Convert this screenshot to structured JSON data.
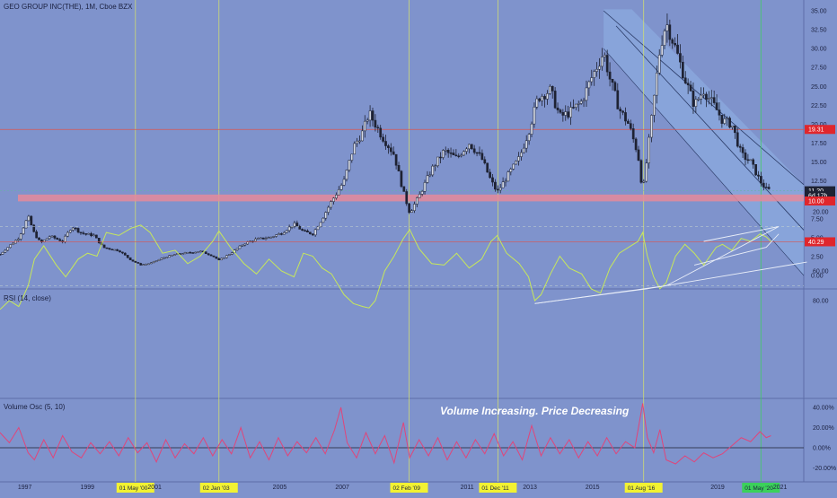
{
  "header": {
    "title": "GEO GROUP INC(THE), 1M, Cboe BZX"
  },
  "colors": {
    "background": "#7f93cc",
    "panel_border": "#5c6ea8",
    "candle": "#1e2233",
    "vline": "#d6e26a",
    "hline_red": "#d9544f",
    "zone_red": "#e58a9a",
    "channel_fill": "#8fb2e6",
    "rsi_line": "#c7e85a",
    "rsi_band": "#a9c8c4",
    "vol_line": "#e0457a",
    "trend_white": "#e9eef8",
    "label_red": "#e0262c",
    "label_dark": "#1e2233",
    "date_yellow": "#f2f232",
    "date_green": "#3bd15a"
  },
  "chart_data": [
    {
      "type": "candlestick",
      "name": "price",
      "y_ticks": [
        "35.00",
        "32.50",
        "30.00",
        "27.50",
        "25.00",
        "22.50",
        "20.00",
        "17.50",
        "15.00",
        "12.50",
        "10.00",
        "7.50",
        "5.00",
        "2.50",
        "0.00"
      ],
      "ylim": [
        0,
        35
      ],
      "markers": [
        {
          "label": "19.31",
          "value": 19.31,
          "style": "red"
        },
        {
          "label": "11.20",
          "value": 11.2,
          "style": "dark"
        },
        {
          "label": "6d 17h",
          "value": 10.55,
          "style": "dark"
        },
        {
          "label": "10.00",
          "value": 9.85,
          "style": "red"
        }
      ],
      "zone": [
        9.8,
        10.7
      ],
      "closes": [
        [
          1996.0,
          2.8
        ],
        [
          1996.6,
          5.0
        ],
        [
          1996.9,
          7.8
        ],
        [
          1997.1,
          5.5
        ],
        [
          1997.3,
          4.3
        ],
        [
          1997.6,
          5.2
        ],
        [
          1998.0,
          4.5
        ],
        [
          1998.3,
          6.5
        ],
        [
          1998.6,
          5.6
        ],
        [
          1999.0,
          5.3
        ],
        [
          1999.3,
          3.7
        ],
        [
          1999.8,
          3.3
        ],
        [
          2000.2,
          2.0
        ],
        [
          2000.5,
          1.4
        ],
        [
          2000.8,
          1.6
        ],
        [
          2001.2,
          2.3
        ],
        [
          2001.6,
          2.8
        ],
        [
          2002.0,
          3.0
        ],
        [
          2002.4,
          3.2
        ],
        [
          2002.8,
          2.6
        ],
        [
          2003.0,
          2.0
        ],
        [
          2003.4,
          3.0
        ],
        [
          2003.8,
          4.2
        ],
        [
          2004.2,
          4.8
        ],
        [
          2004.6,
          5.0
        ],
        [
          2005.0,
          5.6
        ],
        [
          2005.4,
          6.8
        ],
        [
          2005.7,
          5.8
        ],
        [
          2006.0,
          5.5
        ],
        [
          2006.3,
          7.5
        ],
        [
          2006.6,
          9.8
        ],
        [
          2007.0,
          12.5
        ],
        [
          2007.3,
          17.0
        ],
        [
          2007.6,
          19.0
        ],
        [
          2007.8,
          21.5
        ],
        [
          2008.2,
          18.5
        ],
        [
          2008.6,
          16.0
        ],
        [
          2008.9,
          11.0
        ],
        [
          2009.1,
          8.3
        ],
        [
          2009.4,
          10.5
        ],
        [
          2009.8,
          14.0
        ],
        [
          2010.2,
          16.5
        ],
        [
          2010.6,
          15.5
        ],
        [
          2011.0,
          17.5
        ],
        [
          2011.4,
          15.5
        ],
        [
          2011.7,
          12.5
        ],
        [
          2011.9,
          11.0
        ],
        [
          2012.2,
          13.0
        ],
        [
          2012.6,
          15.5
        ],
        [
          2012.9,
          19.0
        ],
        [
          2013.2,
          23.5
        ],
        [
          2013.6,
          24.5
        ],
        [
          2013.9,
          21.0
        ],
        [
          2014.2,
          21.5
        ],
        [
          2014.6,
          23.0
        ],
        [
          2014.9,
          26.0
        ],
        [
          2015.3,
          29.5
        ],
        [
          2015.5,
          26.0
        ],
        [
          2015.8,
          22.0
        ],
        [
          2016.1,
          20.0
        ],
        [
          2016.4,
          16.0
        ],
        [
          2016.55,
          11.0
        ],
        [
          2016.7,
          16.0
        ],
        [
          2016.9,
          23.0
        ],
        [
          2017.1,
          30.0
        ],
        [
          2017.3,
          33.5
        ],
        [
          2017.6,
          30.0
        ],
        [
          2017.9,
          26.0
        ],
        [
          2018.2,
          22.5
        ],
        [
          2018.5,
          24.5
        ],
        [
          2018.9,
          22.0
        ],
        [
          2019.1,
          20.5
        ],
        [
          2019.4,
          20.0
        ],
        [
          2019.7,
          16.0
        ],
        [
          2020.0,
          15.0
        ],
        [
          2020.3,
          12.5
        ],
        [
          2020.5,
          11.4
        ],
        [
          2020.65,
          11.2
        ]
      ]
    },
    {
      "type": "line",
      "name": "rsi",
      "label": "RSI (14, close)",
      "y_ticks": [
        "80.00",
        "60.00",
        "40.00",
        "20.00"
      ],
      "ylim": [
        15,
        90
      ],
      "band": [
        30,
        70
      ],
      "marker": {
        "label": "40.29",
        "value": 40.29
      },
      "points": [
        [
          1996.0,
          86
        ],
        [
          1996.3,
          80
        ],
        [
          1996.6,
          84
        ],
        [
          1996.9,
          70
        ],
        [
          1997.1,
          52
        ],
        [
          1997.4,
          43
        ],
        [
          1997.8,
          56
        ],
        [
          1998.1,
          64
        ],
        [
          1998.5,
          52
        ],
        [
          1998.8,
          48
        ],
        [
          1999.1,
          50
        ],
        [
          1999.4,
          34
        ],
        [
          1999.8,
          36
        ],
        [
          2000.2,
          31
        ],
        [
          2000.5,
          29
        ],
        [
          2000.8,
          34
        ],
        [
          2001.2,
          48
        ],
        [
          2001.6,
          46
        ],
        [
          2002.0,
          55
        ],
        [
          2002.4,
          50
        ],
        [
          2002.8,
          40
        ],
        [
          2003.0,
          33
        ],
        [
          2003.4,
          45
        ],
        [
          2003.8,
          55
        ],
        [
          2004.2,
          62
        ],
        [
          2004.6,
          52
        ],
        [
          2005.0,
          60
        ],
        [
          2005.4,
          64
        ],
        [
          2005.7,
          48
        ],
        [
          2006.0,
          50
        ],
        [
          2006.3,
          58
        ],
        [
          2006.6,
          62
        ],
        [
          2007.0,
          76
        ],
        [
          2007.3,
          82
        ],
        [
          2007.6,
          84
        ],
        [
          2007.8,
          85
        ],
        [
          2008.0,
          80
        ],
        [
          2008.3,
          60
        ],
        [
          2008.6,
          50
        ],
        [
          2008.9,
          38
        ],
        [
          2009.1,
          32
        ],
        [
          2009.4,
          45
        ],
        [
          2009.8,
          55
        ],
        [
          2010.2,
          56
        ],
        [
          2010.6,
          48
        ],
        [
          2011.0,
          58
        ],
        [
          2011.4,
          52
        ],
        [
          2011.7,
          40
        ],
        [
          2011.9,
          36
        ],
        [
          2012.2,
          48
        ],
        [
          2012.6,
          55
        ],
        [
          2012.9,
          64
        ],
        [
          2013.1,
          80
        ],
        [
          2013.3,
          76
        ],
        [
          2013.6,
          62
        ],
        [
          2013.9,
          50
        ],
        [
          2014.2,
          58
        ],
        [
          2014.6,
          62
        ],
        [
          2014.9,
          72
        ],
        [
          2015.2,
          75
        ],
        [
          2015.5,
          58
        ],
        [
          2015.8,
          48
        ],
        [
          2016.1,
          44
        ],
        [
          2016.4,
          40
        ],
        [
          2016.55,
          34
        ],
        [
          2016.7,
          50
        ],
        [
          2016.9,
          64
        ],
        [
          2017.1,
          72
        ],
        [
          2017.3,
          68
        ],
        [
          2017.6,
          50
        ],
        [
          2017.9,
          42
        ],
        [
          2018.2,
          48
        ],
        [
          2018.5,
          56
        ],
        [
          2018.9,
          44
        ],
        [
          2019.1,
          42
        ],
        [
          2019.4,
          46
        ],
        [
          2019.7,
          38
        ],
        [
          2020.0,
          40
        ],
        [
          2020.3,
          35
        ],
        [
          2020.5,
          37
        ],
        [
          2020.65,
          40
        ]
      ],
      "trendlines": [
        [
          [
            2013.1,
            82
          ],
          [
            2016.7,
            72
          ],
          [
            2021.8,
            54
          ]
        ],
        [
          [
            2013.1,
            82
          ],
          [
            2017.3,
            70
          ],
          [
            2020.9,
            30
          ]
        ],
        [
          [
            2018.2,
            56
          ],
          [
            2020.5,
            44
          ],
          [
            2020.9,
            35
          ]
        ],
        [
          [
            2018.5,
            40
          ],
          [
            2020.9,
            30
          ]
        ]
      ]
    },
    {
      "type": "line",
      "name": "volume_osc",
      "label": "Volume Osc (5, 10)",
      "y_ticks": [
        "40.00%",
        "20.00%",
        "0.00%",
        "-20.00%"
      ],
      "ylim": [
        -30,
        45
      ],
      "zero": 0,
      "annotation": "Volume Increasing. Price Decreasing",
      "points": [
        [
          1996.0,
          15
        ],
        [
          1996.3,
          5
        ],
        [
          1996.6,
          20
        ],
        [
          1996.9,
          -5
        ],
        [
          1997.1,
          -12
        ],
        [
          1997.4,
          8
        ],
        [
          1997.7,
          -10
        ],
        [
          1998.0,
          12
        ],
        [
          1998.3,
          -4
        ],
        [
          1998.6,
          -10
        ],
        [
          1998.9,
          5
        ],
        [
          1999.2,
          -6
        ],
        [
          1999.5,
          6
        ],
        [
          1999.8,
          -8
        ],
        [
          2000.1,
          10
        ],
        [
          2000.4,
          -5
        ],
        [
          2000.7,
          5
        ],
        [
          2001.0,
          -14
        ],
        [
          2001.3,
          8
        ],
        [
          2001.6,
          -10
        ],
        [
          2001.9,
          4
        ],
        [
          2002.2,
          -6
        ],
        [
          2002.5,
          10
        ],
        [
          2002.8,
          -8
        ],
        [
          2003.1,
          8
        ],
        [
          2003.4,
          -6
        ],
        [
          2003.7,
          20
        ],
        [
          2004.0,
          -10
        ],
        [
          2004.3,
          6
        ],
        [
          2004.6,
          -12
        ],
        [
          2004.9,
          10
        ],
        [
          2005.2,
          -8
        ],
        [
          2005.5,
          6
        ],
        [
          2005.8,
          -5
        ],
        [
          2006.1,
          10
        ],
        [
          2006.4,
          -6
        ],
        [
          2006.7,
          18
        ],
        [
          2006.9,
          40
        ],
        [
          2007.1,
          5
        ],
        [
          2007.4,
          -10
        ],
        [
          2007.7,
          15
        ],
        [
          2008.0,
          -6
        ],
        [
          2008.3,
          12
        ],
        [
          2008.6,
          -15
        ],
        [
          2008.9,
          25
        ],
        [
          2009.1,
          -10
        ],
        [
          2009.4,
          8
        ],
        [
          2009.7,
          -8
        ],
        [
          2010.0,
          10
        ],
        [
          2010.3,
          -12
        ],
        [
          2010.6,
          6
        ],
        [
          2010.9,
          -10
        ],
        [
          2011.2,
          8
        ],
        [
          2011.5,
          -6
        ],
        [
          2011.8,
          14
        ],
        [
          2012.1,
          -8
        ],
        [
          2012.4,
          6
        ],
        [
          2012.7,
          -12
        ],
        [
          2013.0,
          22
        ],
        [
          2013.3,
          -8
        ],
        [
          2013.6,
          10
        ],
        [
          2013.9,
          -6
        ],
        [
          2014.2,
          8
        ],
        [
          2014.5,
          -10
        ],
        [
          2014.8,
          6
        ],
        [
          2015.1,
          -8
        ],
        [
          2015.4,
          10
        ],
        [
          2015.7,
          -6
        ],
        [
          2016.0,
          6
        ],
        [
          2016.3,
          0
        ],
        [
          2016.55,
          44
        ],
        [
          2016.7,
          10
        ],
        [
          2016.9,
          -5
        ],
        [
          2017.1,
          18
        ],
        [
          2017.3,
          -12
        ],
        [
          2017.6,
          -16
        ],
        [
          2017.9,
          -8
        ],
        [
          2018.2,
          -14
        ],
        [
          2018.5,
          -5
        ],
        [
          2018.8,
          -10
        ],
        [
          2019.1,
          -6
        ],
        [
          2019.4,
          2
        ],
        [
          2019.7,
          10
        ],
        [
          2020.0,
          6
        ],
        [
          2020.3,
          16
        ],
        [
          2020.5,
          10
        ],
        [
          2020.65,
          12
        ]
      ]
    }
  ],
  "x_axis": {
    "ticks": [
      {
        "label": "1997",
        "x": 1996.8,
        "style": "plain"
      },
      {
        "label": "1999",
        "x": 1998.8,
        "style": "plain"
      },
      {
        "label": "01 May '00",
        "x": 2000.33,
        "style": "yellow"
      },
      {
        "label": "2001",
        "x": 2000.95,
        "style": "plain"
      },
      {
        "label": "02 Jan '03",
        "x": 2003.0,
        "style": "yellow"
      },
      {
        "label": "2005",
        "x": 2004.95,
        "style": "plain"
      },
      {
        "label": "2007",
        "x": 2006.95,
        "style": "plain"
      },
      {
        "label": "02 Feb '09",
        "x": 2009.08,
        "style": "yellow"
      },
      {
        "label": "2011",
        "x": 2010.95,
        "style": "plain"
      },
      {
        "label": "01 Dec '11",
        "x": 2011.92,
        "style": "yellow"
      },
      {
        "label": "2013",
        "x": 2012.95,
        "style": "plain"
      },
      {
        "label": "2015",
        "x": 2014.95,
        "style": "plain"
      },
      {
        "label": "01 Aug '16",
        "x": 2016.58,
        "style": "yellow"
      },
      {
        "label": "2019",
        "x": 2018.95,
        "style": "plain"
      },
      {
        "label": "01 May '20",
        "x": 2020.33,
        "style": "green"
      },
      {
        "label": "2021",
        "x": 2020.95,
        "style": "plain"
      }
    ],
    "vlines": [
      2000.33,
      2003.0,
      2009.08,
      2011.92,
      2016.58,
      2020.33
    ]
  }
}
